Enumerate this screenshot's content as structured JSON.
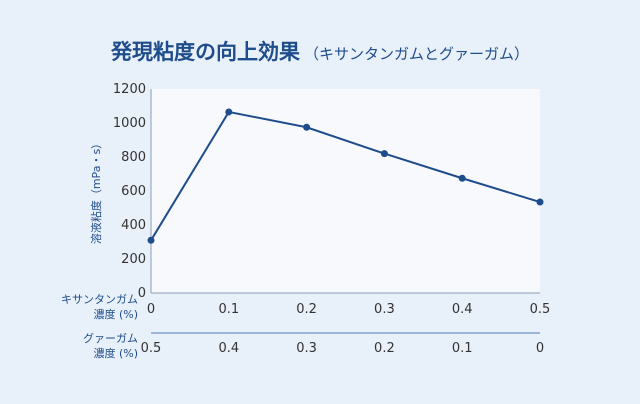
{
  "title": "発現粘度の向上効果",
  "subtitle": "（キサンタンガムとグァーガム）",
  "chart_data": {
    "type": "line",
    "title": "発現粘度の向上効果（キサンタンガムとグァーガム）",
    "ylabel": "溶液粘度（mPa・s）",
    "ylim": [
      0,
      1200
    ],
    "yticks": [
      "0",
      "200",
      "400",
      "600",
      "800",
      "1000",
      "1200"
    ],
    "x_axis_rows": [
      {
        "label": "キサンタンガム\n濃度 (%)",
        "ticks": [
          "0",
          "0.1",
          "0.2",
          "0.3",
          "0.4",
          "0.5"
        ]
      },
      {
        "label": "グァーガム\n濃度 (%)",
        "ticks": [
          "0.5",
          "0.4",
          "0.3",
          "0.2",
          "0.1",
          "0"
        ]
      }
    ],
    "x": [
      0,
      0.1,
      0.2,
      0.3,
      0.4,
      0.5
    ],
    "series": [
      {
        "values": [
          310,
          1065,
          975,
          820,
          675,
          535
        ]
      }
    ],
    "grid": false,
    "colors": {
      "line": "#1f4d8c",
      "axis": "#8a9bb3",
      "plot_bg": "#f7f9fd",
      "text": "#333333"
    }
  }
}
